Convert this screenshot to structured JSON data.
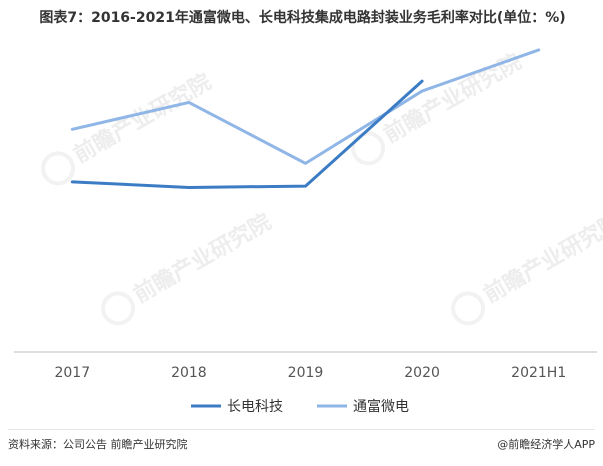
{
  "title": "图表7：2016-2021年通富微电、长电科技集成电路封装业务毛利率对比(单位：%)",
  "footer": {
    "source": "资料来源：公司公告 前瞻产业研究院",
    "brand": "@前瞻经济学人APP"
  },
  "watermark_text": "前瞻产业研究院",
  "colors": {
    "changdian": "#3b7cc4",
    "tongfu": "#8fb6e6",
    "axis": "#bfbfbf",
    "tick_text": "#555555"
  },
  "chart_data": {
    "type": "line",
    "categories": [
      "2017",
      "2018",
      "2019",
      "2020",
      "2021H1"
    ],
    "series": [
      {
        "name": "长电科技",
        "values": [
          12.0,
          11.6,
          11.7,
          19.1,
          null
        ]
      },
      {
        "name": "通富微电",
        "values": [
          15.7,
          17.6,
          13.3,
          18.4,
          21.3
        ]
      }
    ],
    "ylim": [
      0,
      22
    ],
    "grid": false,
    "legend": "bottom"
  }
}
